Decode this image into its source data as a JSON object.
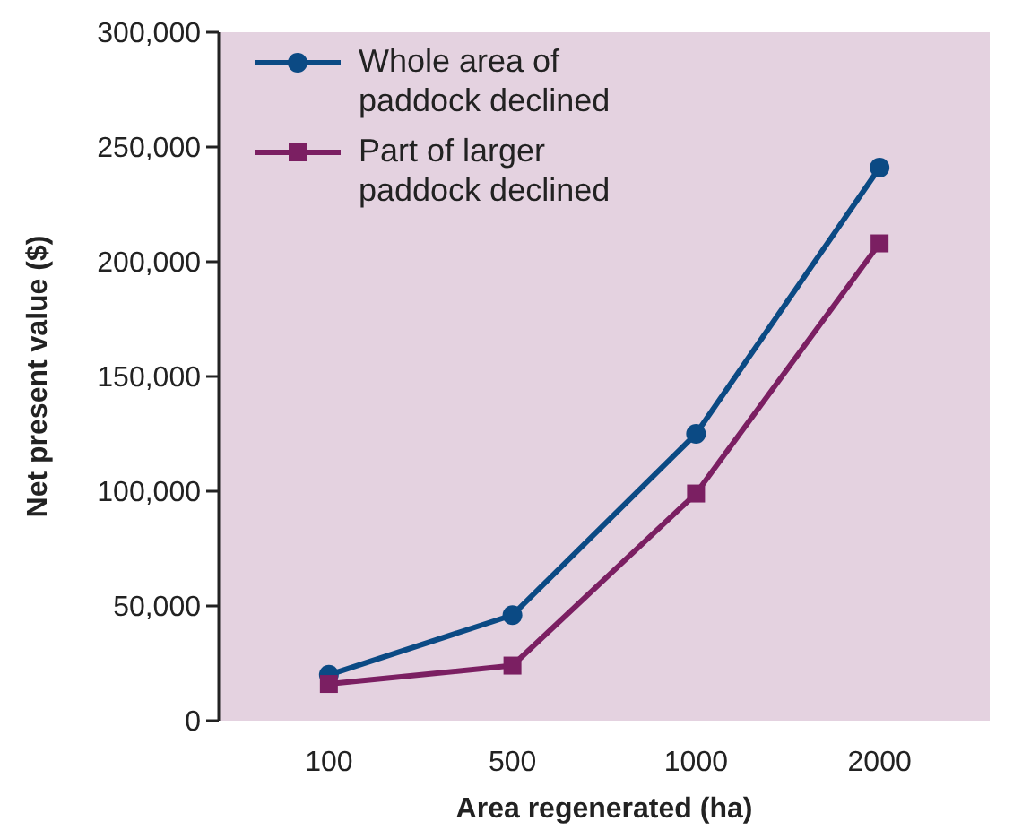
{
  "chart_data": {
    "type": "line",
    "xlabel": "Area regenerated (ha)",
    "ylabel": "Net present value ($)",
    "categories": [
      "100",
      "500",
      "1000",
      "2000"
    ],
    "ylim": [
      0,
      300000
    ],
    "yticks": [
      {
        "value": 0,
        "label": "0"
      },
      {
        "value": 50000,
        "label": "50,000"
      },
      {
        "value": 100000,
        "label": "100,000"
      },
      {
        "value": 150000,
        "label": "150,000"
      },
      {
        "value": 200000,
        "label": "200,000"
      },
      {
        "value": 250000,
        "label": "250,000"
      },
      {
        "value": 300000,
        "label": "300,000"
      }
    ],
    "grid": false,
    "legend": "top left",
    "line_style": "solid",
    "series": [
      {
        "name": "Whole area of paddock declined",
        "color": "#0b4a84",
        "marker": "circle",
        "values": [
          20000,
          46000,
          125000,
          241000
        ]
      },
      {
        "name": "Part of larger paddock declined",
        "color": "#7b1f62",
        "marker": "square",
        "values": [
          16000,
          24000,
          99000,
          208000
        ]
      }
    ]
  }
}
